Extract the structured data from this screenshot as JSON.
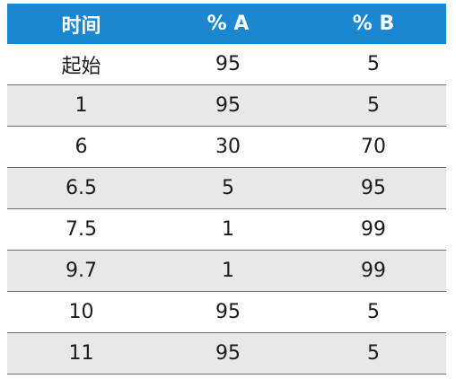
{
  "table": {
    "headers": [
      "时间",
      "% A",
      "% B"
    ],
    "rows": [
      [
        "起始",
        "95",
        "5"
      ],
      [
        "1",
        "95",
        "5"
      ],
      [
        "6",
        "30",
        "70"
      ],
      [
        "6.5",
        "5",
        "95"
      ],
      [
        "7.5",
        "1",
        "99"
      ],
      [
        "9.7",
        "1",
        "99"
      ],
      [
        "10",
        "95",
        "5"
      ],
      [
        "11",
        "95",
        "5"
      ]
    ]
  },
  "colors": {
    "header_bg": "#1a87d0",
    "header_text": "#ffffff",
    "alt_row_bg": "#e8e8e8",
    "row_border": "#6f6f6f"
  }
}
